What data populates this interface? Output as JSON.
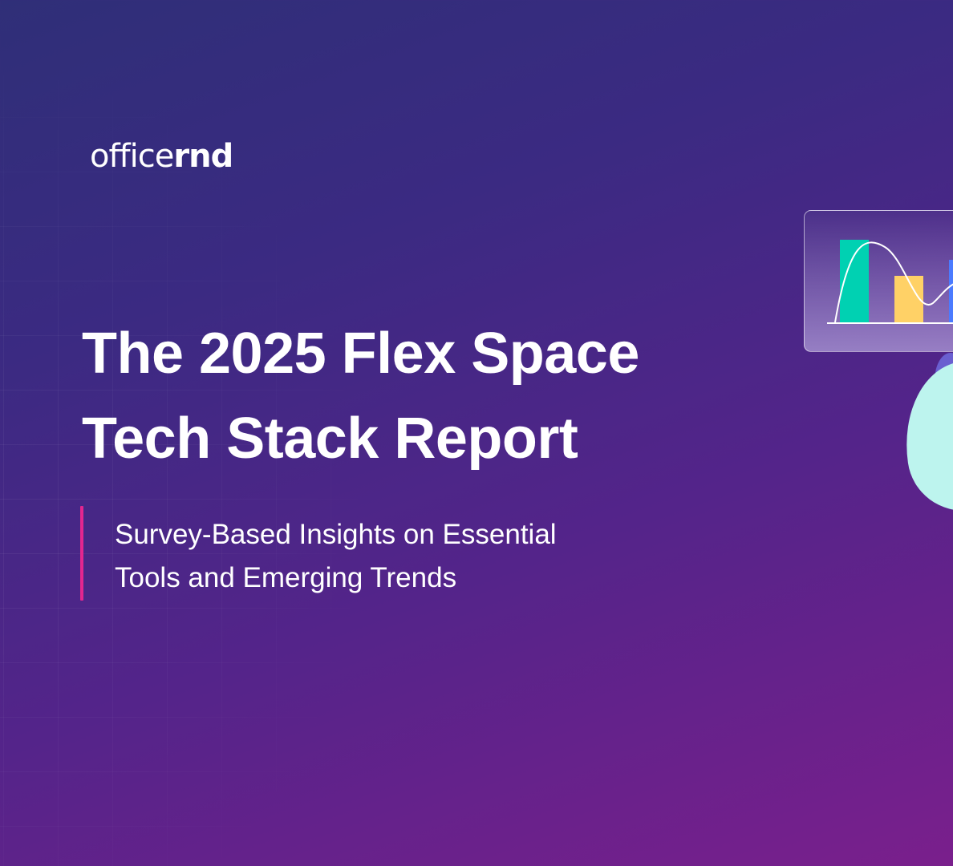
{
  "brand": {
    "logo_light": "office",
    "logo_bold": "rnd"
  },
  "hero": {
    "title_line1": "The 2025 Flex Space",
    "title_line2": "Tech Stack Report",
    "subtitle_line1": "Survey-Based Insights on Essential",
    "subtitle_line2": "Tools and Emerging Trends"
  },
  "colors": {
    "accent": "#e3268f",
    "bar_teal": "#00d1b2",
    "bar_yellow": "#ffd166",
    "bar_blue": "#4b7bff",
    "blob": "#bdf4ee"
  }
}
